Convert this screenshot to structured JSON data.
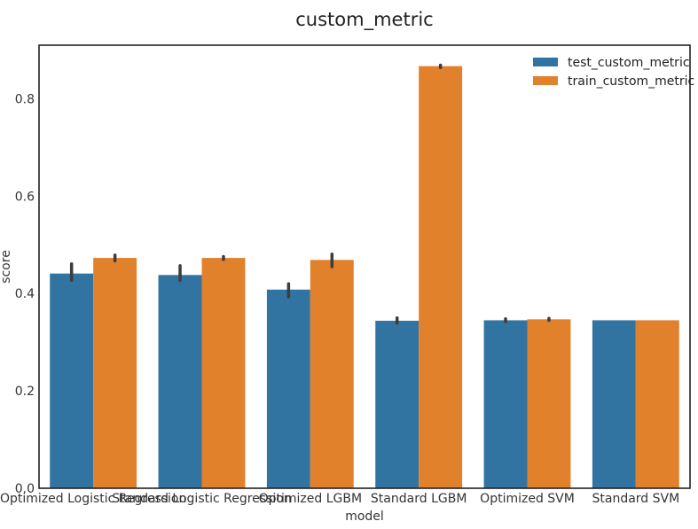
{
  "chart_data": {
    "type": "bar",
    "title": "custom_metric",
    "xlabel": "model",
    "ylabel": "score",
    "categories": [
      "Optimized Logistic Regression",
      "Standard Logistic Regression",
      "Optimized LGBM",
      "Standard LGBM",
      "Optimized SVM",
      "Standard SVM"
    ],
    "series": [
      {
        "name": "test_custom_metric",
        "color": "#3274a1",
        "values": [
          0.441,
          0.438,
          0.408,
          0.344,
          0.345,
          0.345
        ],
        "error_low": [
          0.427,
          0.427,
          0.393,
          0.339,
          0.342,
          0.345
        ],
        "error_high": [
          0.461,
          0.457,
          0.42,
          0.35,
          0.348,
          0.345
        ]
      },
      {
        "name": "train_custom_metric",
        "color": "#e1812c",
        "values": [
          0.473,
          0.473,
          0.469,
          0.867,
          0.347,
          0.345
        ],
        "error_low": [
          0.467,
          0.47,
          0.455,
          0.864,
          0.345,
          0.345
        ],
        "error_high": [
          0.479,
          0.476,
          0.481,
          0.869,
          0.349,
          0.345
        ]
      }
    ],
    "ylim": [
      0,
      0.91
    ],
    "yticks": [
      0.0,
      0.2,
      0.4,
      0.6,
      0.8
    ],
    "ytick_labels": [
      "0.0",
      "0.2",
      "0.4",
      "0.6",
      "0.8"
    ],
    "grid": false,
    "legend": "top-right"
  }
}
